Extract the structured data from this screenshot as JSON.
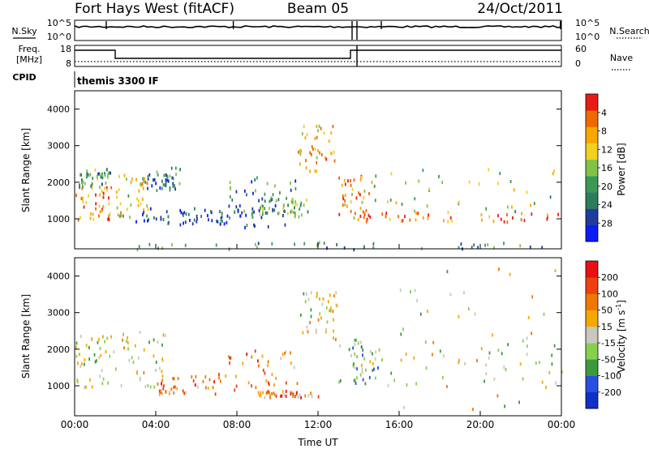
{
  "header": {
    "station": "Fort Hays West (fitACF)",
    "beam": "Beam 05",
    "date": "24/Oct/2011"
  },
  "strip_labels": {
    "nsky": "N.Sky",
    "nsearch": "N.Search",
    "freq": "Freq.",
    "freq_unit": "[MHz]",
    "nave": "Nave",
    "cpid": "CPID",
    "cpid_value": "themis 3300 IF"
  },
  "noise_axis": {
    "left_ticks": [
      "10^5",
      "10^0"
    ],
    "right_ticks": [
      "10^5",
      "10^0"
    ]
  },
  "freq_axis": {
    "left_ticks": [
      "18",
      "8"
    ],
    "right_ticks": [
      "60",
      "0"
    ]
  },
  "colors": {
    "line": "#000000",
    "frame": "#000000"
  },
  "chart_data": [
    {
      "type": "heatmap",
      "title": "",
      "xlabel": "Time UT",
      "ylabel": "Slant Range [km]",
      "x_unit": "hours UT",
      "xlim": [
        0,
        24
      ],
      "ylim": [
        180,
        4500
      ],
      "x_ticks": [
        0,
        4,
        8,
        12,
        16,
        20,
        24
      ],
      "x_tick_labels": [
        "00:00",
        "04:00",
        "08:00",
        "12:00",
        "16:00",
        "20:00",
        "00:00"
      ],
      "y_ticks": [
        1000,
        2000,
        3000,
        4000
      ],
      "y_tick_labels": [
        "1000",
        "2000",
        "3000",
        "4000"
      ],
      "colorbar": {
        "label": "Power [dB]",
        "range": [
          0,
          30
        ],
        "tick_labels": [
          "4",
          "8",
          "12",
          "16",
          "20",
          "24",
          "28"
        ],
        "colors": [
          "#0a1cf5",
          "#1e3c9a",
          "#2e7c60",
          "#3a9a55",
          "#82c24a",
          "#f0d020",
          "#f6a800",
          "#ee6a00",
          "#e81c14"
        ]
      },
      "echo_regions": [
        {
          "t0": 0.0,
          "t1": 1.8,
          "r0": 1000,
          "r1": 1900,
          "level": 0.8
        },
        {
          "t0": 0.2,
          "t1": 1.8,
          "r0": 1900,
          "r1": 2400,
          "level": 0.35
        },
        {
          "t0": 2.0,
          "t1": 3.6,
          "r0": 1050,
          "r1": 2300,
          "level": 0.6
        },
        {
          "t0": 3.5,
          "t1": 5.2,
          "r0": 1800,
          "r1": 2500,
          "level": 0.25
        },
        {
          "t0": 3.0,
          "t1": 8.5,
          "r0": 900,
          "r1": 1400,
          "level": 0.15
        },
        {
          "t0": 5.0,
          "t1": 10.5,
          "r0": 800,
          "r1": 1300,
          "level": 0.2
        },
        {
          "t0": 7.5,
          "t1": 11.0,
          "r0": 1200,
          "r1": 2200,
          "level": 0.3
        },
        {
          "t0": 9.0,
          "t1": 11.5,
          "r0": 1100,
          "r1": 1600,
          "level": 0.45
        },
        {
          "t0": 11.0,
          "t1": 12.8,
          "r0": 2300,
          "r1": 3600,
          "level": 0.7
        },
        {
          "t0": 13.0,
          "t1": 14.5,
          "r0": 1000,
          "r1": 2200,
          "level": 0.75
        },
        {
          "t0": 14.2,
          "t1": 24.0,
          "r0": 950,
          "r1": 1200,
          "level": 0.85
        },
        {
          "t0": 14.0,
          "t1": 24.0,
          "r0": 1200,
          "r1": 2400,
          "level": 0.5
        },
        {
          "t0": 0.0,
          "t1": 24.0,
          "r0": 180,
          "r1": 400,
          "level": 0.3
        }
      ]
    },
    {
      "type": "heatmap",
      "title": "",
      "xlabel": "Time UT",
      "ylabel": "Slant Range [km]",
      "x_unit": "hours UT",
      "xlim": [
        0,
        24
      ],
      "ylim": [
        180,
        4500
      ],
      "x_ticks": [
        0,
        4,
        8,
        12,
        16,
        20,
        24
      ],
      "x_tick_labels": [
        "00:00",
        "04:00",
        "08:00",
        "12:00",
        "16:00",
        "20:00",
        "00:00"
      ],
      "y_ticks": [
        1000,
        2000,
        3000,
        4000
      ],
      "y_tick_labels": [
        "1000",
        "2000",
        "3000",
        "4000"
      ],
      "colorbar": {
        "label": "Velocity [m s",
        "label_sup": "-1",
        "label_close": "]",
        "range": [
          -250,
          250
        ],
        "tick_labels": [
          "200",
          "100",
          "50",
          "15",
          "-15",
          "-50",
          "-100",
          "-200"
        ],
        "colors": [
          "#1030c8",
          "#2850e0",
          "#3c9a3c",
          "#86d050",
          "#c8c8c0",
          "#f6a800",
          "#f07800",
          "#ee4010",
          "#e81010"
        ]
      },
      "echo_regions": [
        {
          "t0": 0.0,
          "t1": 1.8,
          "r0": 1000,
          "r1": 2400,
          "level": 0.45
        },
        {
          "t0": 1.8,
          "t1": 4.5,
          "r0": 1000,
          "r1": 2600,
          "level": 0.5
        },
        {
          "t0": 4.0,
          "t1": 7.0,
          "r0": 800,
          "r1": 1300,
          "level": 0.7
        },
        {
          "t0": 7.0,
          "t1": 11.0,
          "r0": 900,
          "r1": 2000,
          "level": 0.72
        },
        {
          "t0": 9.0,
          "t1": 12.0,
          "r0": 700,
          "r1": 900,
          "level": 0.75
        },
        {
          "t0": 11.0,
          "t1": 13.0,
          "r0": 2300,
          "r1": 3600,
          "level": 0.5
        },
        {
          "t0": 13.0,
          "t1": 15.0,
          "r0": 1100,
          "r1": 2300,
          "level": 0.35
        },
        {
          "t0": 14.0,
          "t1": 24.0,
          "r0": 1000,
          "r1": 2300,
          "level": 0.5
        },
        {
          "t0": 16.0,
          "t1": 24.0,
          "r0": 300,
          "r1": 4300,
          "level": 0.5
        }
      ]
    }
  ]
}
